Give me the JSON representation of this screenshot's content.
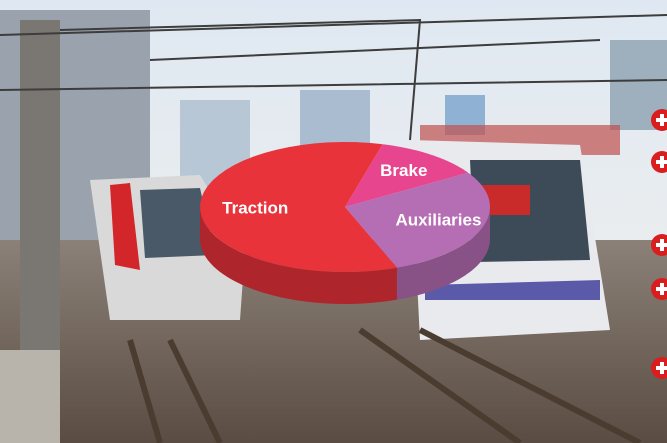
{
  "chart_data": {
    "type": "pie",
    "categories": [
      "Brake",
      "Auxiliaries",
      "Traction"
    ],
    "values": [
      12,
      28,
      60
    ],
    "colors": [
      "#e8458f",
      "#b56db3",
      "#e8333a"
    ],
    "three_d": true
  }
}
